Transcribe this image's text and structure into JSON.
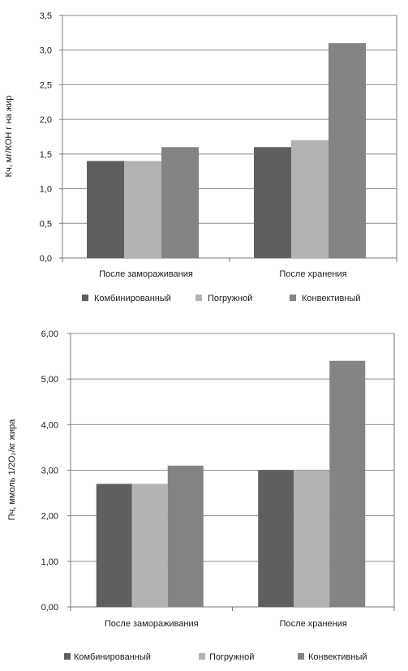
{
  "chart_data": [
    {
      "type": "bar",
      "categories": [
        "После замораживания",
        "После хранения"
      ],
      "series": [
        {
          "name": "Комбинированный",
          "values": [
            1.4,
            1.6
          ]
        },
        {
          "name": "Погружной",
          "values": [
            1.4,
            1.7
          ]
        },
        {
          "name": "Конвективный",
          "values": [
            1.6,
            3.1
          ]
        }
      ],
      "ylabel": "Кч, мг/КОН г на жир",
      "ylim": [
        0,
        3.5
      ],
      "yticks": [
        "0,0",
        "0,5",
        "1,0",
        "1,5",
        "2,0",
        "2,5",
        "3,0",
        "3,5"
      ],
      "grid": true,
      "legend_position": "bottom"
    },
    {
      "type": "bar",
      "categories": [
        "После замораживания",
        "После хранения"
      ],
      "series": [
        {
          "name": "Комбинированный",
          "values": [
            2.7,
            3.0
          ]
        },
        {
          "name": "Погружной",
          "values": [
            2.7,
            3.0
          ]
        },
        {
          "name": "Конвективный",
          "values": [
            3.1,
            5.4
          ]
        }
      ],
      "ylabel": "Пч, ммоль 1/2O₂/кг жира",
      "ylim": [
        0,
        6
      ],
      "yticks": [
        "0,00",
        "1,00",
        "2,00",
        "3,00",
        "4,00",
        "5,00",
        "6,00"
      ],
      "grid": true,
      "legend_position": "bottom"
    }
  ],
  "colors": {
    "series": [
      "#5f5f5f",
      "#b3b3b3",
      "#838383"
    ],
    "grid": "#8c8c8c",
    "axis": "#7a7a7a"
  }
}
